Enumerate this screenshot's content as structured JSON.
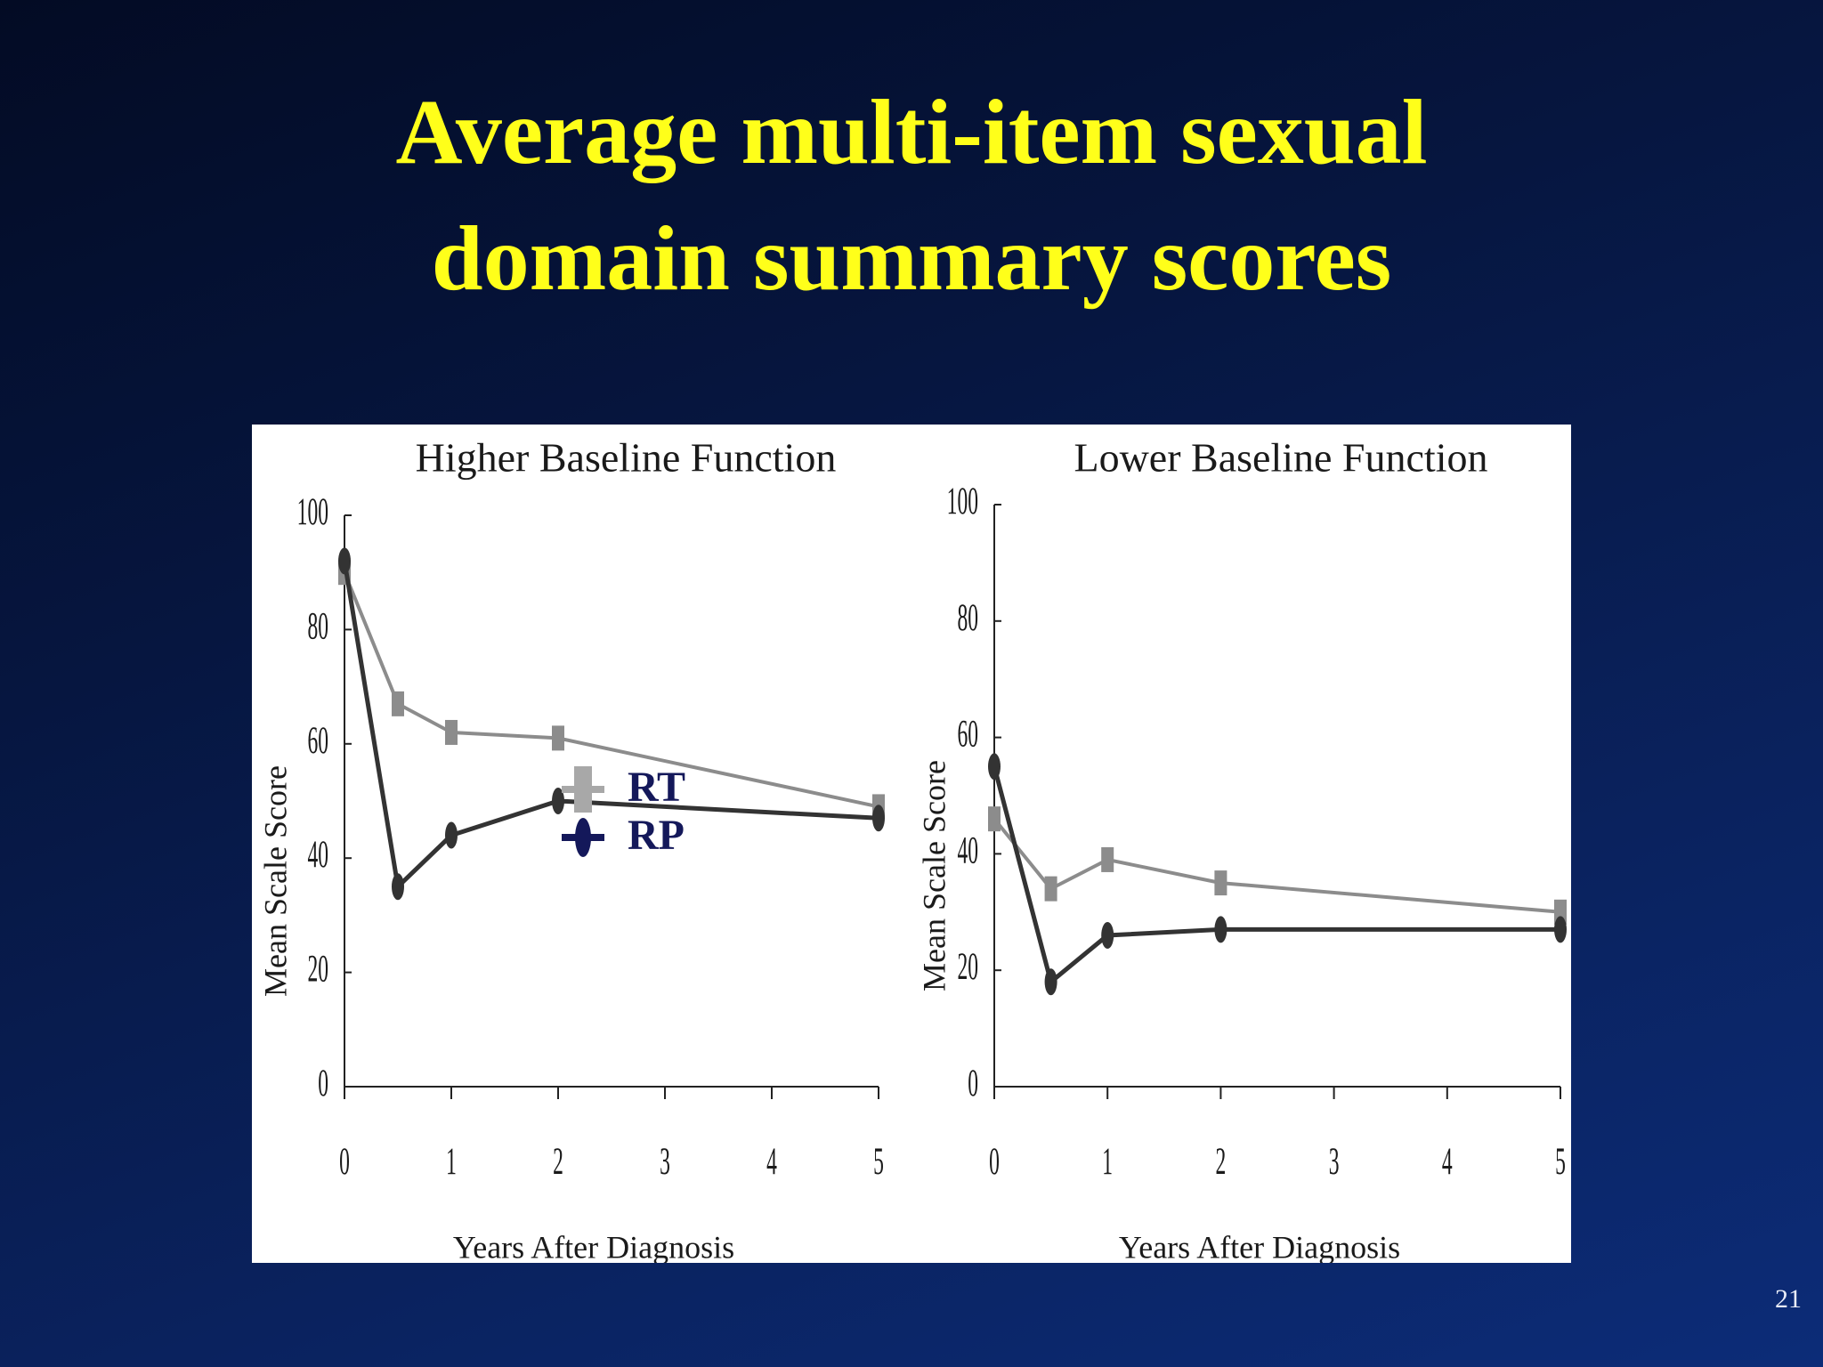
{
  "slide": {
    "title_line1": "Average multi-item sexual",
    "title_line2": "domain summary scores",
    "page_number": "21"
  },
  "legend": {
    "items": [
      {
        "label": "RT",
        "color": "#a8a8a8",
        "marker": "square"
      },
      {
        "label": "RP",
        "color": "#14185a",
        "marker": "ellipse"
      }
    ]
  },
  "chart_data": [
    {
      "type": "line",
      "title": "Higher Baseline Function",
      "xlabel": "Years After Diagnosis",
      "ylabel": "Mean Scale Score",
      "xlim": [
        0,
        5
      ],
      "ylim": [
        0,
        100
      ],
      "x_ticks": [
        0,
        1,
        2,
        3,
        4,
        5
      ],
      "y_ticks": [
        0,
        20,
        40,
        60,
        80,
        100
      ],
      "series": [
        {
          "name": "RT",
          "color": "#8c8c8c",
          "marker": "square",
          "x": [
            0,
            0.5,
            1,
            2,
            5
          ],
          "y": [
            90,
            67,
            62,
            61,
            49
          ]
        },
        {
          "name": "RP",
          "color": "#333333",
          "marker": "ellipse",
          "x": [
            0,
            0.5,
            1,
            2,
            5
          ],
          "y": [
            92,
            35,
            44,
            50,
            47
          ]
        }
      ]
    },
    {
      "type": "line",
      "title": "Lower Baseline Function",
      "xlabel": "Years After Diagnosis",
      "ylabel": "Mean Scale Score",
      "xlim": [
        0,
        5
      ],
      "ylim": [
        0,
        100
      ],
      "x_ticks": [
        0,
        1,
        2,
        3,
        4,
        5
      ],
      "y_ticks": [
        0,
        20,
        40,
        60,
        80,
        100
      ],
      "series": [
        {
          "name": "RT",
          "color": "#8c8c8c",
          "marker": "square",
          "x": [
            0,
            0.5,
            1,
            2,
            5
          ],
          "y": [
            46,
            34,
            39,
            35,
            30
          ]
        },
        {
          "name": "RP",
          "color": "#333333",
          "marker": "ellipse",
          "x": [
            0,
            0.5,
            1,
            2,
            5
          ],
          "y": [
            55,
            18,
            26,
            27,
            27
          ]
        }
      ]
    }
  ]
}
